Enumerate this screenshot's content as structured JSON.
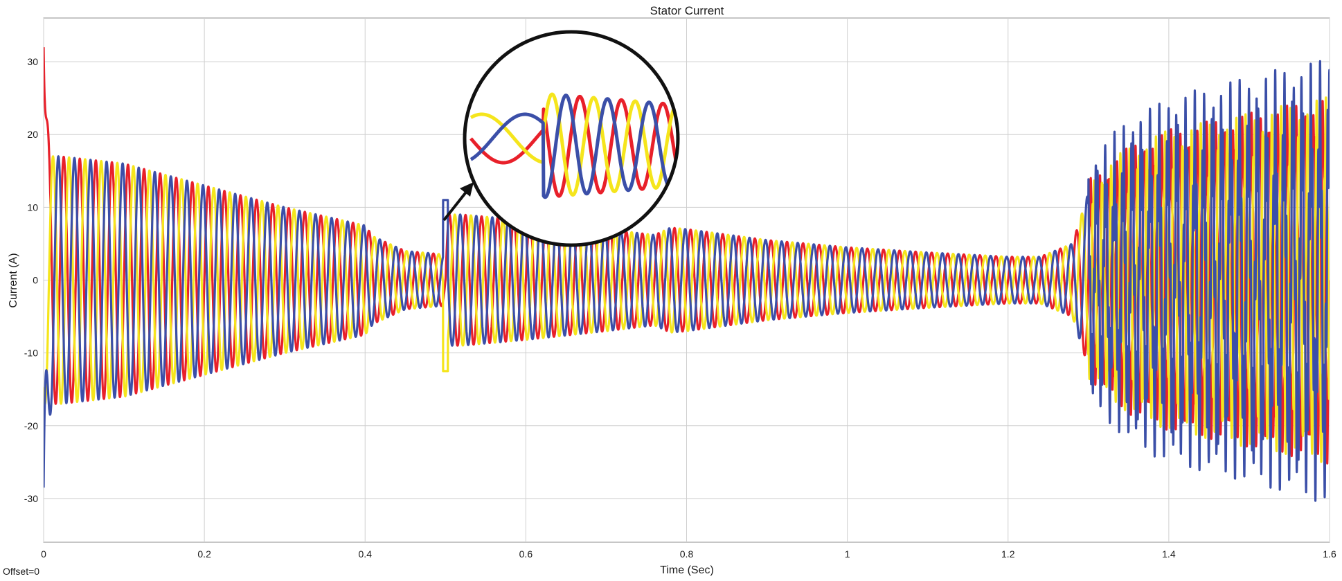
{
  "chart_data": {
    "type": "line",
    "title": "Stator Current",
    "xlabel": "Time (Sec)",
    "ylabel": "Current (A)",
    "offset_label": "Offset=0",
    "xlim": [
      0,
      1.6
    ],
    "ylim": [
      -36,
      36
    ],
    "x_ticks": [
      0,
      0.2,
      0.4,
      0.6,
      0.8,
      1,
      1.2,
      1.4,
      1.6
    ],
    "x_tick_labels": [
      "0",
      "0.2",
      "0.4",
      "0.6",
      "0.8",
      "1",
      "1.2",
      "1.4",
      "1.6"
    ],
    "y_ticks": [
      -30,
      -20,
      -10,
      0,
      10,
      20,
      30
    ],
    "y_tick_labels": [
      "-30",
      "-20",
      "-10",
      "0",
      "10",
      "20",
      "30"
    ],
    "grid": true,
    "electrical_frequency_hz": 50,
    "phase_offsets_deg": [
      0,
      120,
      240
    ],
    "series_colors": [
      "#e8202a",
      "#f5e51c",
      "#3b4fa8"
    ],
    "amplitude_envelope": {
      "t": [
        0.005,
        0.02,
        0.1,
        0.2,
        0.3,
        0.4,
        0.41,
        0.45,
        0.5,
        0.501,
        0.52,
        0.6,
        0.7,
        0.76,
        0.78,
        0.8,
        0.9,
        1.0,
        1.1,
        1.2,
        1.24,
        1.28,
        1.3,
        1.35,
        1.4,
        1.5,
        1.6
      ],
      "amplitude": [
        17,
        17,
        16,
        13,
        10,
        7.5,
        6,
        4,
        3.5,
        9,
        9,
        8.2,
        7,
        6.2,
        7.2,
        7,
        5.5,
        4.5,
        3.8,
        3.2,
        3.2,
        5,
        12,
        16,
        18,
        20,
        22
      ]
    },
    "startup_transient": {
      "t": 0.003,
      "peak_phase_a": 32,
      "peak_phase_c": -28.5
    },
    "fault_transient": {
      "t": 0.5,
      "phase_c": 11,
      "phase_b": -12.5
    },
    "inset": {
      "type": "zoom-detail",
      "time_span": [
        0.47,
        0.53
      ],
      "description_note": ""
    }
  }
}
